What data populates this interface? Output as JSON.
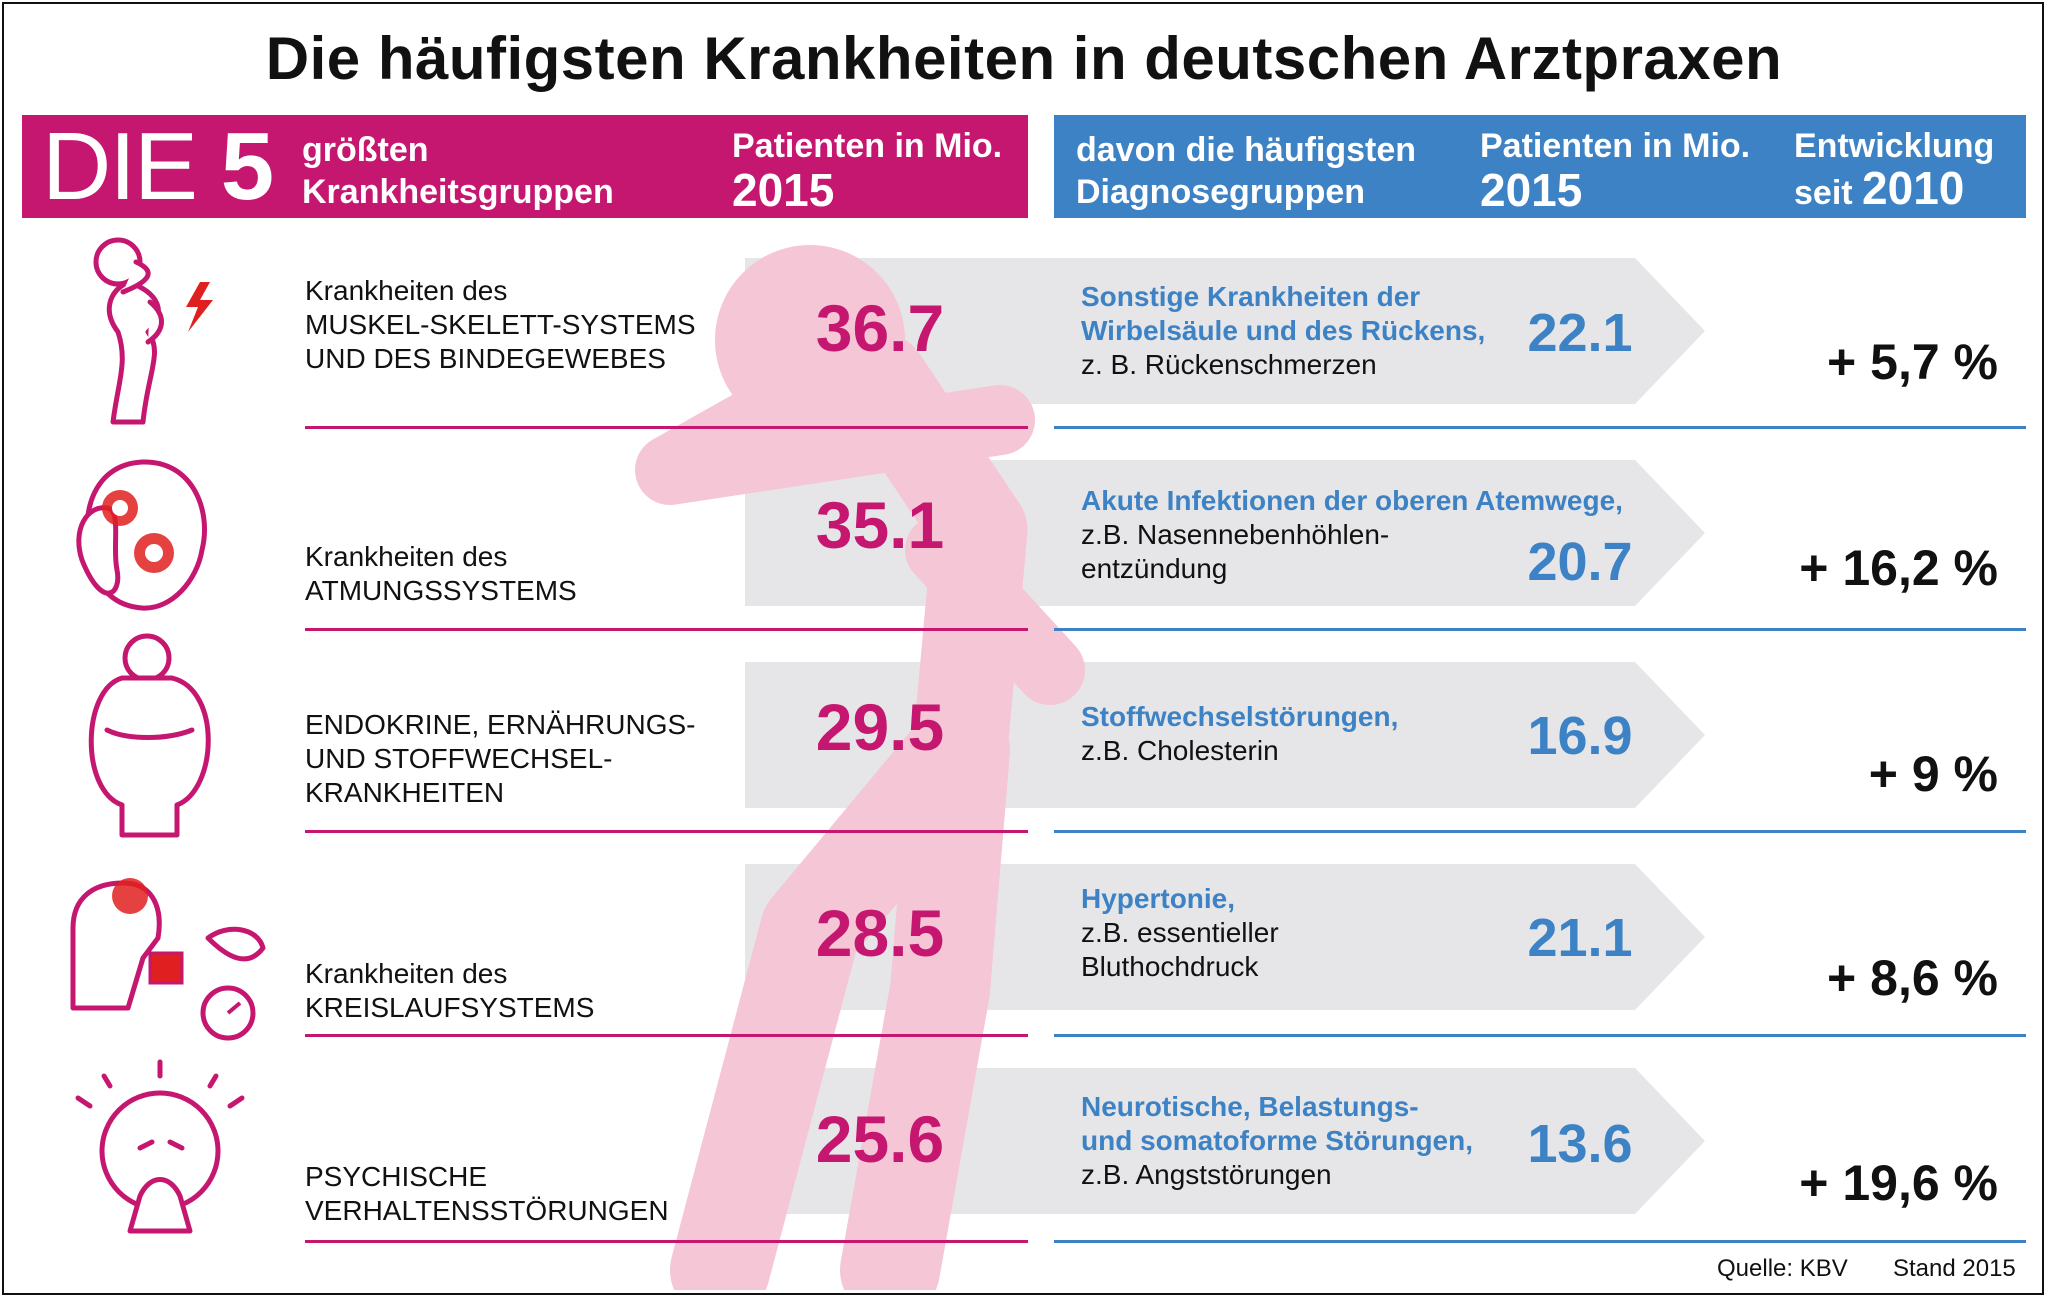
{
  "title": "Die häufigsten Krankheiten in deutschen Arztpraxen",
  "header": {
    "die": "DIE",
    "five": "5",
    "groups_line1": "größten",
    "groups_line2": "Krankheitsgruppen",
    "patients_line1": "Patienten in Mio.",
    "patients_year": "2015",
    "diag_line1": "davon die häufigsten",
    "diag_line2": "Diagnosegruppen",
    "diag_patients_line1": "Patienten in Mio.",
    "diag_patients_year": "2015",
    "trend_line1": "Entwicklung",
    "trend_since": "seit",
    "trend_year": "2010"
  },
  "colors": {
    "pink": "#c5176f",
    "blue": "#3d82c4",
    "grey_arrow": "#e6e6e8",
    "figure": "#f4c6d6"
  },
  "chart_data": {
    "type": "table",
    "title": "Die häufigsten Krankheiten in deutschen Arztpraxen",
    "unit": "Patienten in Mio. 2015",
    "rows": [
      {
        "icon": "back-pain-icon",
        "category": "Krankheiten des\nMUSKEL-SKELETT-SYSTEMS\nUND DES BINDEGEWEBES",
        "patients": "36.7",
        "diagnosis": "Sonstige Krankheiten der\nWirbelsäule und des Rückens,",
        "example": "z. B. Rückenschmerzen",
        "diag_patients": "22.1",
        "trend": "+ 5,7 %"
      },
      {
        "icon": "sinus-pain-icon",
        "category": "Krankheiten des\nATMUNGSSYSTEMS",
        "patients": "35.1",
        "diagnosis": "Akute Infektionen der oberen Atemwege,",
        "example": "z.B. Nasennebenhöhlen-\nentzündung",
        "diag_patients": "20.7",
        "trend": "+ 16,2 %"
      },
      {
        "icon": "overweight-icon",
        "category": "ENDOKRINE, ERNÄHRUNGS-\nUND STOFFWECHSEL-\nKRANKHEITEN",
        "patients": "29.5",
        "diagnosis": "Stoffwechselstörungen,",
        "example": "z.B. Cholesterin",
        "diag_patients": "16.9",
        "trend": "+ 9 %"
      },
      {
        "icon": "blood-pressure-icon",
        "category": "Krankheiten des\nKREISLAUFSYSTEMS",
        "patients": "28.5",
        "diagnosis": "Hypertonie,",
        "example": "z.B. essentieller\nBluthochdruck",
        "diag_patients": "21.1",
        "trend": "+ 8,6 %"
      },
      {
        "icon": "anxiety-icon",
        "category": "PSYCHISCHE\nVERHALTENSSTÖRUNGEN",
        "patients": "25.6",
        "diagnosis": "Neurotische, Belastungs-\nund somatoforme Störungen,",
        "example": "z.B. Angststörungen",
        "diag_patients": "13.6",
        "trend": "+ 19,6 %"
      }
    ]
  },
  "footer": {
    "source": "Quelle: KBV",
    "stand": "Stand 2015"
  }
}
